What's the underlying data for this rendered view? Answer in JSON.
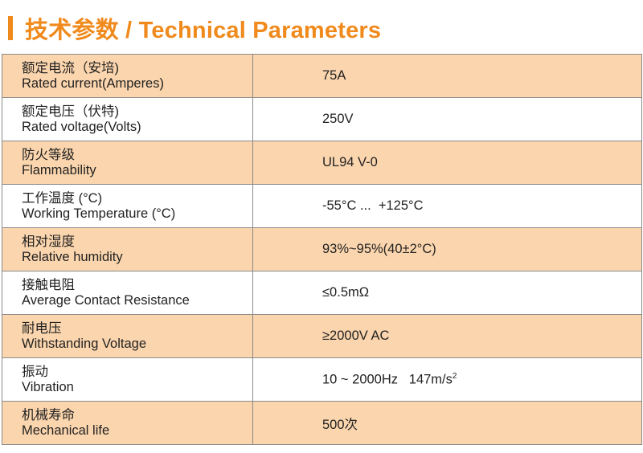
{
  "header": {
    "title": "技术参数 / Technical Parameters"
  },
  "colors": {
    "accent": "#f08a1c",
    "row_shade": "#fbd5ad",
    "border": "#8a8a8a"
  },
  "rows": [
    {
      "name_zh": "额定电流（安培)",
      "name_en": "Rated current(Amperes)",
      "value": "75A"
    },
    {
      "name_zh": "额定电压（伏特)",
      "name_en": "Rated voltage(Volts)",
      "value": "250V"
    },
    {
      "name_zh": "防火等级",
      "name_en": "Flammability",
      "value": "UL94 V-0"
    },
    {
      "name_zh": "工作温度 (°C)",
      "name_en": "Working Temperature (°C)",
      "value": "-55°C ...  +125°C"
    },
    {
      "name_zh": "相对湿度",
      "name_en": "Relative humidity",
      "value": "93%~95%(40±2°C)"
    },
    {
      "name_zh": "接触电阻",
      "name_en": "Average Contact Resistance",
      "value": "≤0.5mΩ"
    },
    {
      "name_zh": "耐电压",
      "name_en": "Withstanding Voltage",
      "value": "≥2000V AC"
    },
    {
      "name_zh": "振动",
      "name_en": "Vibration",
      "value": "10 ~ 2000Hz   147m/s",
      "value_sup": "2"
    },
    {
      "name_zh": "机械寿命",
      "name_en": "Mechanical life",
      "value": "500次"
    }
  ]
}
